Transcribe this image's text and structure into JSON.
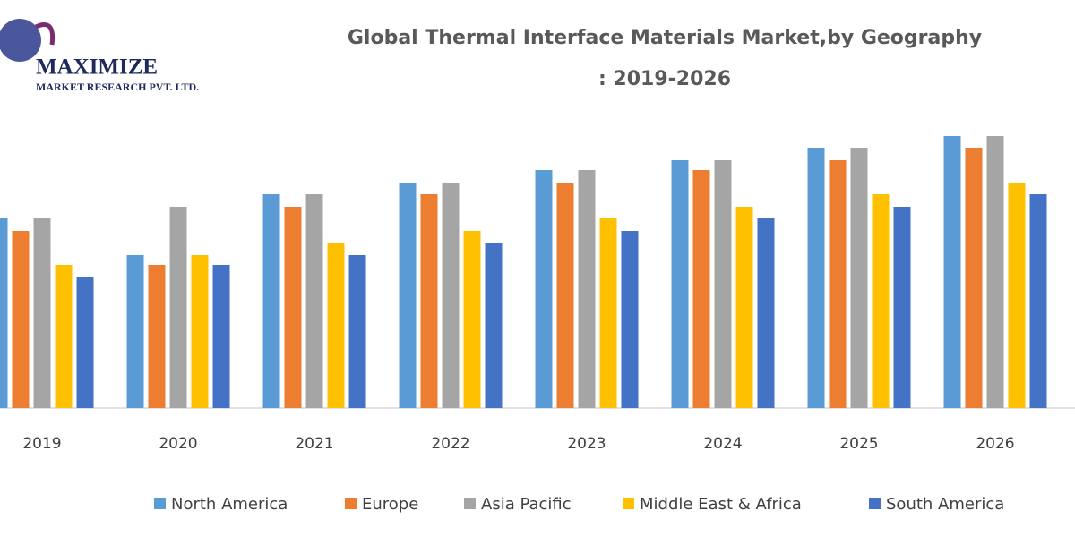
{
  "logo": {
    "name": "MAXIMIZE",
    "tagline": "MARKET RESEARCH PVT. LTD."
  },
  "chart_data": {
    "type": "bar",
    "title": [
      "Global Thermal Interface Materials Market,by Geography",
      ": 2019-2026"
    ],
    "categories": [
      "2019",
      "2020",
      "2021",
      "2022",
      "2023",
      "2024",
      "2025",
      "2026"
    ],
    "ylim": [
      0,
      320
    ],
    "series": [
      {
        "name": "North America",
        "color": "#5b9bd5",
        "values": [
          212,
          171,
          239,
          252,
          266,
          277,
          291,
          304
        ]
      },
      {
        "name": "Europe",
        "color": "#ed7d31",
        "values": [
          198,
          160,
          225,
          239,
          252,
          266,
          277,
          291
        ]
      },
      {
        "name": "Asia Pacific",
        "color": "#a5a5a5",
        "values": [
          212,
          225,
          239,
          252,
          266,
          277,
          291,
          304
        ]
      },
      {
        "name": "Middle East & Africa",
        "color": "#ffc000",
        "values": [
          160,
          171,
          185,
          198,
          212,
          225,
          239,
          252
        ]
      },
      {
        "name": "South America",
        "color": "#4472c4",
        "values": [
          146,
          160,
          171,
          185,
          198,
          212,
          225,
          239
        ]
      }
    ]
  }
}
